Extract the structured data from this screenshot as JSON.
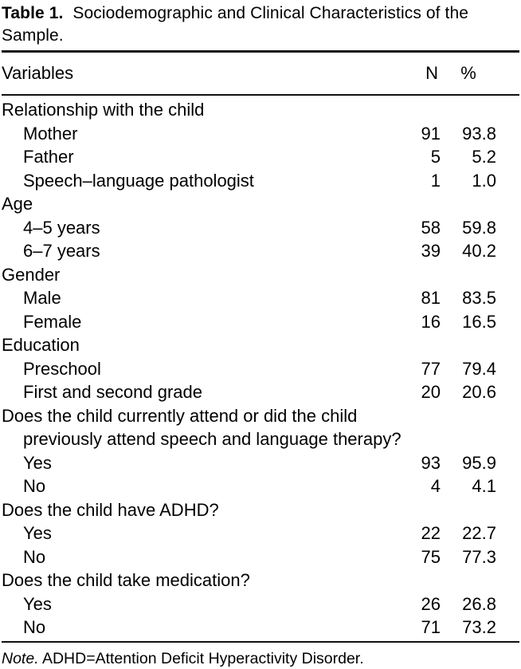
{
  "title": {
    "bold": "Table 1.",
    "line1": "Sociodemographic and Clinical Characteristics of the",
    "line2": "Sample."
  },
  "columns": {
    "variables": "Variables",
    "n": "N",
    "pct": "%"
  },
  "table": {
    "rows": [
      {
        "text": "Relationship with the child",
        "indent": 0
      },
      {
        "text": "Mother",
        "indent": 1,
        "n": "91",
        "pct": "93.8"
      },
      {
        "text": "Father",
        "indent": 1,
        "n": "5",
        "pct": "5.2"
      },
      {
        "text": "Speech–language pathologist",
        "indent": 1,
        "n": "1",
        "pct": "1.0"
      },
      {
        "text": "Age",
        "indent": 0
      },
      {
        "text": "4–5 years",
        "indent": 1,
        "n": "58",
        "pct": "59.8"
      },
      {
        "text": "6–7 years",
        "indent": 1,
        "n": "39",
        "pct": "40.2"
      },
      {
        "text": "Gender",
        "indent": 0
      },
      {
        "text": "Male",
        "indent": 1,
        "n": "81",
        "pct": "83.5"
      },
      {
        "text": "Female",
        "indent": 1,
        "n": "16",
        "pct": "16.5"
      },
      {
        "text": "Education",
        "indent": 0
      },
      {
        "text": "Preschool",
        "indent": 1,
        "n": "77",
        "pct": "79.4"
      },
      {
        "text": "First and second grade",
        "indent": 1,
        "n": "20",
        "pct": "20.6"
      },
      {
        "text": "Does the child currently attend or did the child",
        "indent": 0
      },
      {
        "text": "previously attend speech and language therapy?",
        "indent": 1
      },
      {
        "text": "Yes",
        "indent": 1,
        "n": "93",
        "pct": "95.9"
      },
      {
        "text": "No",
        "indent": 1,
        "n": "4",
        "pct": "4.1"
      },
      {
        "text": "Does the child have ADHD?",
        "indent": 0
      },
      {
        "text": "Yes",
        "indent": 1,
        "n": "22",
        "pct": "22.7"
      },
      {
        "text": "No",
        "indent": 1,
        "n": "75",
        "pct": "77.3"
      },
      {
        "text": "Does the child take medication?",
        "indent": 0
      },
      {
        "text": "Yes",
        "indent": 1,
        "n": "26",
        "pct": "26.8"
      },
      {
        "text": "No",
        "indent": 1,
        "n": "71",
        "pct": "73.2"
      }
    ]
  },
  "note": {
    "prefix": "Note.",
    "rest": "ADHD=Attention Deficit Hyperactivity Disorder."
  },
  "colors": {
    "text": "#000000",
    "rule": "#111111",
    "background": "#ffffff"
  }
}
